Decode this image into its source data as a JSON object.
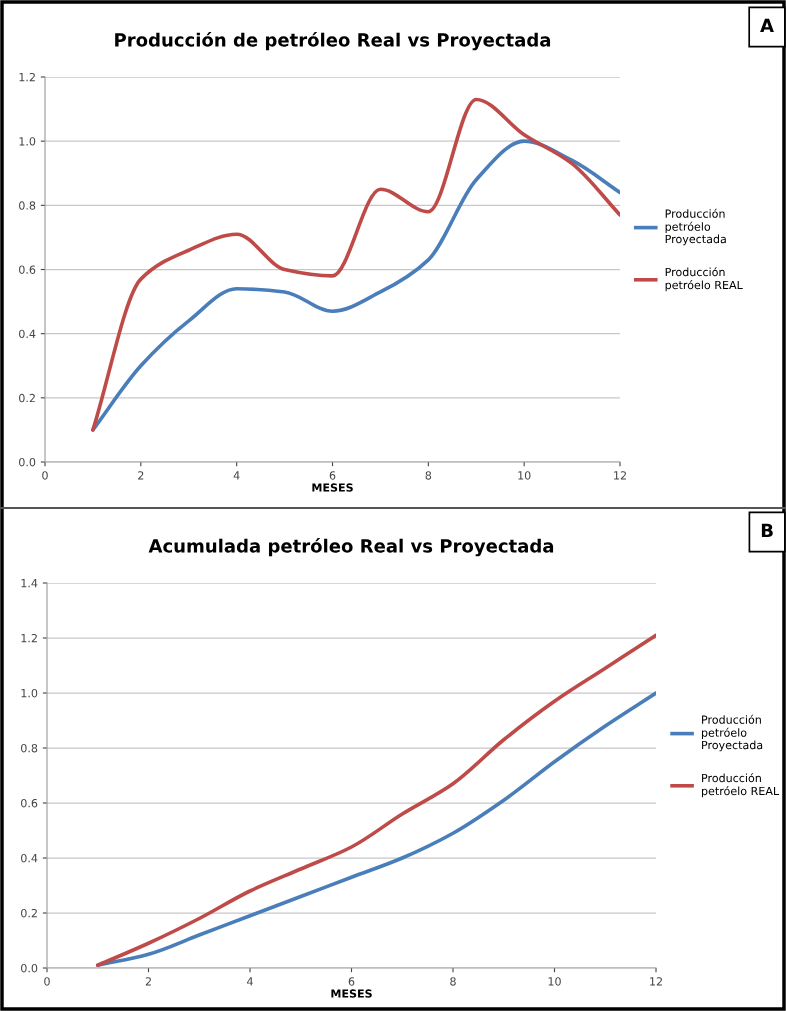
{
  "chart_data": [
    {
      "type": "line",
      "title": "Producción de petróleo Real vs Proyectada",
      "xlabel": "MESES",
      "annotations": [
        "A"
      ],
      "x": [
        1,
        2,
        3,
        4,
        5,
        6,
        7,
        8,
        9,
        10,
        11,
        12
      ],
      "series": [
        {
          "name": "Producción petróelo Proyectada",
          "color": "#4a7ebb",
          "values": [
            0.1,
            0.3,
            0.44,
            0.54,
            0.53,
            0.47,
            0.53,
            0.63,
            0.88,
            1.0,
            0.94,
            0.84
          ]
        },
        {
          "name": "Producción petróelo REAL",
          "color": "#be4b48",
          "values": [
            0.1,
            0.57,
            0.66,
            0.71,
            0.6,
            0.58,
            0.85,
            0.78,
            1.13,
            1.02,
            0.93,
            0.77
          ]
        }
      ],
      "xlim": [
        0,
        12
      ],
      "xticks": [
        0,
        2,
        4,
        6,
        8,
        10,
        12
      ],
      "ylim": [
        0,
        1.2
      ],
      "yticks": [
        {
          "value": 0,
          "label": "0.0"
        },
        {
          "value": 0.2,
          "label": "0.2"
        },
        {
          "value": 0.4,
          "label": "0.4"
        },
        {
          "value": 0.6,
          "label": "0.6"
        },
        {
          "value": 0.8,
          "label": "0.8"
        },
        {
          "value": 1.0,
          "label": "1.0"
        },
        {
          "value": 1.2,
          "label": "1.2"
        }
      ],
      "grid": "y",
      "legend": "right",
      "marker": "none",
      "line_style": "solid"
    },
    {
      "type": "line",
      "title": "Acumulada petróleo Real vs Proyectada",
      "xlabel": "MESES",
      "annotations": [
        "B"
      ],
      "x": [
        1,
        2,
        3,
        4,
        5,
        6,
        7,
        8,
        9,
        10,
        11,
        12
      ],
      "series": [
        {
          "name": "Producción petróelo Proyectada",
          "color": "#4a7ebb",
          "values": [
            0.01,
            0.05,
            0.12,
            0.19,
            0.26,
            0.33,
            0.4,
            0.49,
            0.61,
            0.75,
            0.88,
            1.0
          ]
        },
        {
          "name": "Producción petróelo REAL",
          "color": "#be4b48",
          "values": [
            0.01,
            0.09,
            0.18,
            0.28,
            0.36,
            0.44,
            0.56,
            0.67,
            0.83,
            0.97,
            1.09,
            1.21
          ]
        }
      ],
      "xlim": [
        0,
        12
      ],
      "xticks": [
        0,
        2,
        4,
        6,
        8,
        10,
        12
      ],
      "ylim": [
        0,
        1.4
      ],
      "yticks": [
        {
          "value": 0,
          "label": "0.0"
        },
        {
          "value": 0.2,
          "label": "0.2"
        },
        {
          "value": 0.4,
          "label": "0.4"
        },
        {
          "value": 0.6,
          "label": "0.6"
        },
        {
          "value": 0.8,
          "label": "0.8"
        },
        {
          "value": 1.0,
          "label": "1.0"
        },
        {
          "value": 1.2,
          "label": "1.2"
        },
        {
          "value": 1.4,
          "label": "1.4"
        }
      ],
      "grid": "y",
      "legend": "right",
      "marker": "none",
      "line_style": "solid"
    }
  ]
}
